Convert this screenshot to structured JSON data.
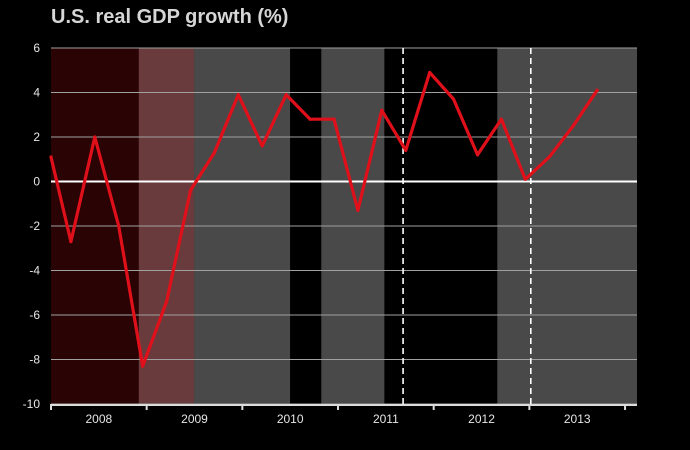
{
  "chart_data": {
    "type": "line",
    "title": "U.S. real GDP growth (%)",
    "xlabel": "",
    "ylabel": "",
    "ylim": [
      -10,
      6
    ],
    "yticks": [
      6,
      4,
      2,
      0,
      -2,
      -4,
      -6,
      -8,
      -10
    ],
    "xlim": [
      2007.5,
      2013.625
    ],
    "year_labels": [
      {
        "label": "2008",
        "x": 2008.0
      },
      {
        "label": "2009",
        "x": 2009.0
      },
      {
        "label": "2010",
        "x": 2010.0
      },
      {
        "label": "2011",
        "x": 2011.0
      },
      {
        "label": "2012",
        "x": 2012.0
      },
      {
        "label": "2013",
        "x": 2013.0
      }
    ],
    "grid": true,
    "colors": {
      "background": "#000000",
      "line": "#e0101a",
      "grid": "#a0a0a0",
      "zero_line": "#ffffff",
      "text": "#e6e6e6",
      "title": "#d6d6d6"
    },
    "regions": [
      {
        "from": 2007.5,
        "to": 2008.417,
        "color": "#2a0304"
      },
      {
        "from": 2008.417,
        "to": 2008.995,
        "color": "#6a3b3d"
      },
      {
        "from": 2008.995,
        "to": 2010.0,
        "color": "#494949"
      },
      {
        "from": 2010.0,
        "to": 2010.325,
        "color": "#000000"
      },
      {
        "from": 2010.325,
        "to": 2010.985,
        "color": "#494949"
      },
      {
        "from": 2010.985,
        "to": 2012.165,
        "color": "#000000"
      },
      {
        "from": 2012.165,
        "to": 2013.625,
        "color": "#494949"
      }
    ],
    "dashed_lines": [
      2011.18,
      2012.515
    ],
    "series": [
      {
        "x": [
          2007.5,
          2007.708,
          2007.958,
          2008.208,
          2008.458,
          2008.708,
          2008.958,
          2009.208,
          2009.458,
          2009.708,
          2009.958,
          2010.208,
          2010.458,
          2010.708,
          2010.958,
          2011.208,
          2011.458,
          2011.708,
          2011.958,
          2012.208,
          2012.458,
          2012.708,
          2012.958,
          2013.208
        ],
        "values": [
          1.1,
          -2.7,
          2.0,
          -2.0,
          -8.3,
          -5.4,
          -0.4,
          1.3,
          3.9,
          1.6,
          3.9,
          2.8,
          2.8,
          -1.3,
          3.2,
          1.4,
          4.9,
          3.7,
          1.2,
          2.8,
          0.1,
          1.1,
          2.5,
          4.1
        ]
      }
    ]
  }
}
